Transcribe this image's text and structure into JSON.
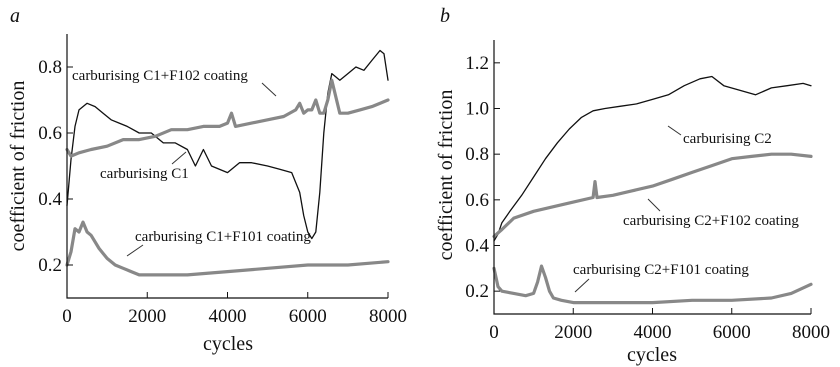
{
  "chart_data": [
    {
      "type": "line",
      "panel_label": "a",
      "xlabel": "cycles",
      "ylabel": "coefficient of friction",
      "xlim": [
        0,
        8000
      ],
      "ylim": [
        0.1,
        0.9
      ],
      "x_ticks": [
        "0",
        "2000",
        "4000",
        "6000",
        "8000"
      ],
      "x_tick_values": [
        0,
        2000,
        4000,
        6000,
        8000
      ],
      "y_ticks": [
        "0.2",
        "0.4",
        "0.6",
        "0.8"
      ],
      "y_tick_values": [
        0.2,
        0.4,
        0.6,
        0.8
      ],
      "series": [
        {
          "name": "carburising C1",
          "color": "#111111",
          "style": "thin",
          "x": [
            0,
            100,
            200,
            300,
            500,
            700,
            900,
            1100,
            1300,
            1500,
            1800,
            2100,
            2400,
            2700,
            3000,
            3200,
            3400,
            3600,
            4000,
            4300,
            4600,
            5000,
            5300,
            5600,
            5800,
            5900,
            6000,
            6100,
            6200,
            6300,
            6400,
            6500,
            6600,
            6700,
            6800,
            7000,
            7200,
            7400,
            7600,
            7800,
            7900,
            8000
          ],
          "y": [
            0.38,
            0.52,
            0.62,
            0.67,
            0.69,
            0.68,
            0.66,
            0.64,
            0.63,
            0.62,
            0.6,
            0.6,
            0.57,
            0.57,
            0.55,
            0.5,
            0.55,
            0.5,
            0.48,
            0.51,
            0.51,
            0.5,
            0.49,
            0.48,
            0.42,
            0.35,
            0.3,
            0.28,
            0.3,
            0.42,
            0.6,
            0.72,
            0.78,
            0.77,
            0.76,
            0.78,
            0.8,
            0.79,
            0.82,
            0.85,
            0.84,
            0.76
          ]
        },
        {
          "name": "carburising C1+F102 coating",
          "color": "#888888",
          "style": "thick",
          "x": [
            0,
            100,
            300,
            600,
            1000,
            1400,
            1800,
            2200,
            2600,
            3000,
            3400,
            3800,
            4000,
            4100,
            4200,
            4600,
            5000,
            5400,
            5700,
            5800,
            5900,
            6000,
            6100,
            6200,
            6300,
            6400,
            6500,
            6600,
            6700,
            6800,
            7000,
            7300,
            7600,
            8000
          ],
          "y": [
            0.55,
            0.53,
            0.54,
            0.55,
            0.56,
            0.58,
            0.58,
            0.59,
            0.61,
            0.61,
            0.62,
            0.62,
            0.63,
            0.66,
            0.62,
            0.63,
            0.64,
            0.65,
            0.67,
            0.69,
            0.66,
            0.67,
            0.67,
            0.7,
            0.66,
            0.66,
            0.7,
            0.76,
            0.71,
            0.66,
            0.66,
            0.67,
            0.68,
            0.7
          ]
        },
        {
          "name": "carburising C1+F101 coating",
          "color": "#888888",
          "style": "thick",
          "x": [
            0,
            100,
            200,
            300,
            400,
            500,
            600,
            800,
            1000,
            1200,
            1400,
            1600,
            1800,
            2000,
            2500,
            3000,
            4000,
            5000,
            6000,
            7000,
            8000
          ],
          "y": [
            0.2,
            0.24,
            0.31,
            0.3,
            0.33,
            0.3,
            0.29,
            0.25,
            0.22,
            0.2,
            0.19,
            0.18,
            0.17,
            0.17,
            0.17,
            0.17,
            0.18,
            0.19,
            0.2,
            0.2,
            0.21
          ]
        }
      ],
      "annotations": [
        "carburising C1+F102 coating",
        "carburising C1",
        "carburising C1+F101 coating"
      ]
    },
    {
      "type": "line",
      "panel_label": "b",
      "xlabel": "cycles",
      "ylabel": "coefficient of friction",
      "xlim": [
        0,
        8000
      ],
      "ylim": [
        0.1,
        1.3
      ],
      "x_ticks": [
        "0",
        "2000",
        "4000",
        "6000",
        "8000"
      ],
      "x_tick_values": [
        0,
        2000,
        4000,
        6000,
        8000
      ],
      "y_ticks": [
        "0.2",
        "0.4",
        "0.6",
        "0.8",
        "1.0",
        "1.2"
      ],
      "y_tick_values": [
        0.2,
        0.4,
        0.6,
        0.8,
        1.0,
        1.2
      ],
      "series": [
        {
          "name": "carburising C2",
          "color": "#111111",
          "style": "thin",
          "x": [
            0,
            100,
            200,
            400,
            700,
            1000,
            1300,
            1600,
            1900,
            2200,
            2500,
            2800,
            3200,
            3600,
            4000,
            4400,
            4800,
            5200,
            5500,
            5800,
            6200,
            6600,
            7000,
            7400,
            7800,
            8000
          ],
          "y": [
            0.42,
            0.45,
            0.5,
            0.55,
            0.62,
            0.7,
            0.78,
            0.85,
            0.91,
            0.96,
            0.99,
            1.0,
            1.01,
            1.02,
            1.04,
            1.06,
            1.1,
            1.13,
            1.14,
            1.1,
            1.08,
            1.06,
            1.09,
            1.1,
            1.11,
            1.1
          ]
        },
        {
          "name": "carburising C2+F102 coating",
          "color": "#888888",
          "style": "thick",
          "x": [
            0,
            200,
            500,
            1000,
            1500,
            2000,
            2500,
            2550,
            2600,
            3000,
            3500,
            4000,
            4500,
            5000,
            5500,
            6000,
            6500,
            7000,
            7500,
            8000
          ],
          "y": [
            0.44,
            0.47,
            0.52,
            0.55,
            0.57,
            0.59,
            0.61,
            0.68,
            0.61,
            0.62,
            0.64,
            0.66,
            0.69,
            0.72,
            0.75,
            0.78,
            0.79,
            0.8,
            0.8,
            0.79
          ]
        },
        {
          "name": "carburising C2+F101 coating",
          "color": "#888888",
          "style": "thick",
          "x": [
            0,
            100,
            200,
            500,
            800,
            1000,
            1100,
            1200,
            1300,
            1400,
            1500,
            1700,
            2000,
            3000,
            4000,
            5000,
            6000,
            7000,
            7500,
            8000
          ],
          "y": [
            0.3,
            0.22,
            0.2,
            0.19,
            0.18,
            0.19,
            0.24,
            0.31,
            0.26,
            0.2,
            0.17,
            0.16,
            0.15,
            0.15,
            0.15,
            0.16,
            0.16,
            0.17,
            0.19,
            0.23
          ]
        }
      ],
      "annotations": [
        "carburising C2",
        "carburising C2+F102 coating",
        "carburising C2+F101 coating"
      ]
    }
  ]
}
